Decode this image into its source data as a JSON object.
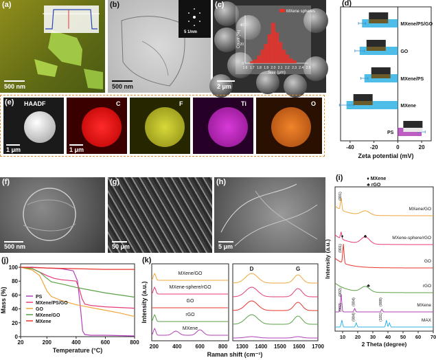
{
  "panels": {
    "a": {
      "label": "(a)",
      "scale": "500 nm"
    },
    "b": {
      "label": "(b)",
      "scale": "500 nm",
      "inset_scale": "5 1/nm"
    },
    "c": {
      "label": "(c)",
      "scale": "2 μm",
      "legend": "MXene spheres"
    },
    "d": {
      "label": "(d)"
    },
    "e": {
      "label": "(e)",
      "scale1": "1 μm",
      "scale2": "1 μm",
      "tiles": [
        "HAADF",
        "C",
        "F",
        "Ti",
        "O"
      ]
    },
    "f": {
      "label": "(f)",
      "scale": "500 nm"
    },
    "g": {
      "label": "(g)",
      "scale": "50 μm"
    },
    "h": {
      "label": "(h)",
      "scale": "5 μm"
    },
    "i": {
      "label": "(i)"
    },
    "j": {
      "label": "(j)"
    },
    "k": {
      "label": "(k)"
    }
  },
  "colors": {
    "red": "#e8332a",
    "green": "#58a144",
    "orange": "#f0a63a",
    "blue": "#3a8ec8",
    "purple": "#b23fb8",
    "pink": "#e53a7a",
    "cyan": "#2fb2e4"
  },
  "chart_data": [
    {
      "id": "c_inset",
      "type": "bar",
      "legend": [
        "MXene spheres"
      ],
      "xlabel": "Size (μm)",
      "ylabel": "Count (%)",
      "xticks": [
        "1.6",
        "1.7",
        "1.8",
        "1.9",
        "2.0",
        "2.1",
        "2.2",
        "2.3",
        "2.4",
        "2.5"
      ],
      "yticks": [
        "0",
        "20",
        "40"
      ],
      "xlim": [
        1.6,
        2.5
      ],
      "ylim": [
        0,
        50
      ],
      "x": [
        1.7,
        1.75,
        1.8,
        1.85,
        1.9,
        1.95,
        2.0,
        2.05,
        2.1,
        2.15,
        2.2,
        2.25,
        2.3
      ],
      "values": [
        2,
        4,
        8,
        14,
        20,
        30,
        42,
        32,
        22,
        14,
        9,
        5,
        3
      ]
    },
    {
      "id": "d",
      "type": "bar",
      "orientation": "horizontal",
      "xlabel": "Zeta potential (mV)",
      "xticks": [
        "-40",
        "-20",
        "0",
        "20"
      ],
      "xlim": [
        -48,
        28
      ],
      "categories": [
        "MXene/PS/GO",
        "GO",
        "MXene/PS",
        "MXene",
        "PS"
      ],
      "values": [
        -30,
        -32,
        -28,
        -43,
        20
      ],
      "errors": [
        3,
        4,
        3,
        6,
        3
      ]
    },
    {
      "id": "i",
      "type": "line",
      "xlabel": "2 Theta (degree)",
      "ylabel": "Intensity (a.u.)",
      "xticks": [
        "10",
        "20",
        "30",
        "40",
        "50",
        "60",
        "70"
      ],
      "xlim": [
        5,
        70
      ],
      "legend": [
        "MXene",
        "rGO"
      ],
      "series": [
        {
          "name": "MXene/GO",
          "color": "#f0a63a",
          "labels": [
            "(001)"
          ]
        },
        {
          "name": "MXene-sphere/rGO",
          "color": "#e53a7a"
        },
        {
          "name": "GO",
          "color": "#e8332a",
          "labels": [
            "(001)"
          ]
        },
        {
          "name": "rGO",
          "color": "#58a144"
        },
        {
          "name": "MXene",
          "color": "#b23fb8",
          "labels": [
            "(002)",
            "(004)",
            "(008)"
          ]
        },
        {
          "name": "MAX",
          "color": "#2fb2e4",
          "labels": [
            "(002)",
            "(004)",
            "(101)"
          ]
        }
      ]
    },
    {
      "id": "j",
      "type": "line",
      "xlabel": "Temperature (°C)",
      "ylabel": "Mass (%)",
      "xticks": [
        "20",
        "200",
        "400",
        "600",
        "800"
      ],
      "yticks": [
        "0",
        "20",
        "40",
        "60",
        "80",
        "100"
      ],
      "xlim": [
        20,
        800
      ],
      "ylim": [
        0,
        105
      ],
      "series": [
        {
          "name": "PS",
          "color": "#b23fb8",
          "x": [
            20,
            100,
            200,
            300,
            380,
            410,
            430,
            445,
            460,
            500,
            600,
            800
          ],
          "y": [
            100,
            100,
            99,
            98,
            95,
            80,
            40,
            8,
            3,
            2,
            2,
            1
          ]
        },
        {
          "name": "MXene/PS/GO",
          "color": "#e53a7a",
          "x": [
            20,
            100,
            150,
            200,
            250,
            300,
            400,
            420,
            440,
            460,
            500,
            600,
            800
          ],
          "y": [
            100,
            98,
            93,
            88,
            84,
            82,
            80,
            70,
            55,
            47,
            45,
            43,
            41
          ]
        },
        {
          "name": "GO",
          "color": "#f0a63a",
          "x": [
            20,
            100,
            150,
            180,
            200,
            230,
            300,
            400,
            500,
            600,
            700,
            800
          ],
          "y": [
            100,
            96,
            88,
            75,
            66,
            58,
            52,
            46,
            42,
            38,
            34,
            29
          ]
        },
        {
          "name": "MXene/GO",
          "color": "#58a144",
          "x": [
            20,
            100,
            150,
            200,
            230,
            300,
            400,
            500,
            600,
            700,
            800
          ],
          "y": [
            100,
            98,
            93,
            84,
            79,
            76,
            71,
            67,
            63,
            60,
            57
          ]
        },
        {
          "name": "MXene",
          "color": "#e8332a",
          "x": [
            20,
            200,
            400,
            600,
            800
          ],
          "y": [
            100,
            99,
            98,
            97,
            97
          ]
        }
      ]
    },
    {
      "id": "k",
      "type": "line",
      "xlabel": "Raman shift (cm⁻¹)",
      "ylabel": "Intensity (a.u.)",
      "xticks_left": [
        "200",
        "400",
        "600",
        "800"
      ],
      "xticks_right": [
        "1300",
        "1400",
        "1500",
        "1600",
        "1700"
      ],
      "peaks": [
        "D",
        "G"
      ],
      "series": [
        {
          "name": "MXene/GO",
          "color": "#f0a63a"
        },
        {
          "name": "MXene-sphere/rGO",
          "color": "#e53a7a"
        },
        {
          "name": "GO",
          "color": "#e8332a"
        },
        {
          "name": "rGO",
          "color": "#58a144"
        },
        {
          "name": "MXene",
          "color": "#b23fb8"
        }
      ]
    }
  ]
}
